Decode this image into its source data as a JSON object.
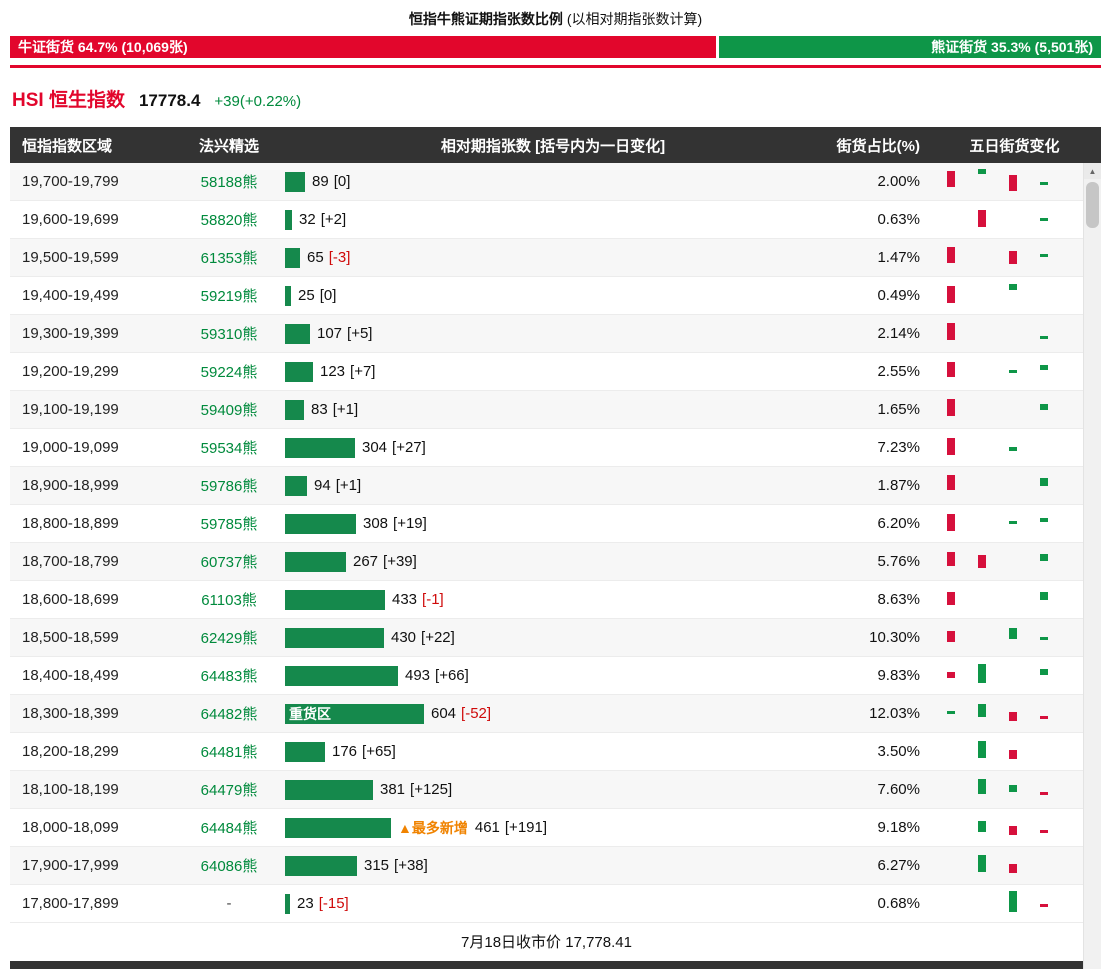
{
  "page": {
    "title_main": "恒指牛熊证期指张数比例",
    "title_sub": "(以相对期指张数计算)"
  },
  "ratio_bar": {
    "bull_label": "牛证街货 64.7% (10,069张)",
    "bull_pct": 64.7,
    "bear_label": "熊证街货 35.3% (5,501张)",
    "bear_pct": 35.3
  },
  "index_header": {
    "title": "HSI 恒生指数",
    "price": "17778.4",
    "change": "+39(+0.22%)"
  },
  "table": {
    "columns": [
      "恒指指数区域",
      "法兴精选",
      "相对期指张数 [括号内为一日变化]",
      "街货占比(%)",
      "五日街货变化"
    ],
    "footer": "7月18日收市价 17,778.41",
    "rows": [
      {
        "range": "19,700-19,799",
        "code": "58188熊",
        "qty": 89,
        "chg": "[0]",
        "neg": false,
        "pct": "2.00%",
        "spark": [
          [
            0,
            "r",
            4,
            16
          ],
          [
            1,
            "g",
            2,
            5
          ],
          [
            2,
            "r",
            8,
            16
          ],
          [
            3,
            "g",
            15,
            3
          ]
        ]
      },
      {
        "range": "19,600-19,699",
        "code": "58820熊",
        "qty": 32,
        "chg": "[+2]",
        "neg": false,
        "pct": "0.63%",
        "spark": [
          [
            1,
            "r",
            5,
            17
          ],
          [
            3,
            "g",
            13,
            3
          ]
        ]
      },
      {
        "range": "19,500-19,599",
        "code": "61353熊",
        "qty": 65,
        "chg": "[-3]",
        "neg": true,
        "pct": "1.47%",
        "spark": [
          [
            0,
            "r",
            4,
            16
          ],
          [
            2,
            "r",
            8,
            13
          ],
          [
            3,
            "g",
            11,
            3
          ]
        ]
      },
      {
        "range": "19,400-19,499",
        "code": "59219熊",
        "qty": 25,
        "chg": "[0]",
        "neg": false,
        "pct": "0.49%",
        "spark": [
          [
            0,
            "r",
            5,
            17
          ],
          [
            2,
            "g",
            3,
            6
          ]
        ]
      },
      {
        "range": "19,300-19,399",
        "code": "59310熊",
        "qty": 107,
        "chg": "[+5]",
        "neg": false,
        "pct": "2.14%",
        "spark": [
          [
            0,
            "r",
            4,
            17
          ],
          [
            3,
            "g",
            17,
            3
          ]
        ]
      },
      {
        "range": "19,200-19,299",
        "code": "59224熊",
        "qty": 123,
        "chg": "[+7]",
        "neg": false,
        "pct": "2.55%",
        "spark": [
          [
            0,
            "r",
            5,
            15
          ],
          [
            2,
            "g",
            13,
            3
          ],
          [
            3,
            "g",
            8,
            5
          ]
        ]
      },
      {
        "range": "19,100-19,199",
        "code": "59409熊",
        "qty": 83,
        "chg": "[+1]",
        "neg": false,
        "pct": "1.65%",
        "spark": [
          [
            0,
            "r",
            4,
            17
          ],
          [
            3,
            "g",
            9,
            6
          ]
        ]
      },
      {
        "range": "19,000-19,099",
        "code": "59534熊",
        "qty": 304,
        "chg": "[+27]",
        "neg": false,
        "pct": "7.23%",
        "spark": [
          [
            0,
            "r",
            5,
            17
          ],
          [
            2,
            "g",
            14,
            4
          ]
        ]
      },
      {
        "range": "18,900-18,999",
        "code": "59786熊",
        "qty": 94,
        "chg": "[+1]",
        "neg": false,
        "pct": "1.87%",
        "spark": [
          [
            0,
            "r",
            4,
            15
          ],
          [
            3,
            "g",
            7,
            8
          ]
        ]
      },
      {
        "range": "18,800-18,899",
        "code": "59785熊",
        "qty": 308,
        "chg": "[+19]",
        "neg": false,
        "pct": "6.20%",
        "spark": [
          [
            0,
            "r",
            5,
            17
          ],
          [
            2,
            "g",
            12,
            3
          ],
          [
            3,
            "g",
            9,
            4
          ]
        ]
      },
      {
        "range": "18,700-18,799",
        "code": "60737熊",
        "qty": 267,
        "chg": "[+39]",
        "neg": false,
        "pct": "5.76%",
        "spark": [
          [
            0,
            "r",
            5,
            14
          ],
          [
            1,
            "r",
            8,
            13
          ],
          [
            3,
            "g",
            7,
            7
          ]
        ]
      },
      {
        "range": "18,600-18,699",
        "code": "61103熊",
        "qty": 433,
        "chg": "[-1]",
        "neg": true,
        "pct": "8.63%",
        "spark": [
          [
            0,
            "r",
            7,
            13
          ],
          [
            3,
            "g",
            7,
            8
          ]
        ]
      },
      {
        "range": "18,500-18,599",
        "code": "62429熊",
        "qty": 430,
        "chg": "[+22]",
        "neg": false,
        "pct": "10.30%",
        "spark": [
          [
            0,
            "r",
            8,
            11
          ],
          [
            2,
            "g",
            5,
            11
          ],
          [
            3,
            "g",
            14,
            3
          ]
        ]
      },
      {
        "range": "18,400-18,499",
        "code": "64483熊",
        "qty": 493,
        "chg": "[+66]",
        "neg": false,
        "pct": "9.83%",
        "spark": [
          [
            0,
            "r",
            11,
            6
          ],
          [
            1,
            "g",
            3,
            19
          ],
          [
            3,
            "g",
            8,
            6
          ]
        ]
      },
      {
        "range": "18,300-18,399",
        "code": "64482熊",
        "qty": 604,
        "chg": "[-52]",
        "neg": true,
        "pct": "12.03%",
        "barLabel": "重货区",
        "spark": [
          [
            0,
            "g",
            12,
            3
          ],
          [
            1,
            "g",
            5,
            13
          ],
          [
            2,
            "r",
            13,
            9
          ],
          [
            3,
            "r",
            17,
            3
          ]
        ]
      },
      {
        "range": "18,200-18,299",
        "code": "64481熊",
        "qty": 176,
        "chg": "[+65]",
        "neg": false,
        "pct": "3.50%",
        "spark": [
          [
            1,
            "g",
            4,
            17
          ],
          [
            2,
            "r",
            13,
            9
          ]
        ]
      },
      {
        "range": "18,100-18,199",
        "code": "64479熊",
        "qty": 381,
        "chg": "[+125]",
        "neg": false,
        "pct": "7.60%",
        "spark": [
          [
            1,
            "g",
            4,
            15
          ],
          [
            2,
            "g",
            10,
            7
          ],
          [
            3,
            "r",
            17,
            3
          ]
        ]
      },
      {
        "range": "18,000-18,099",
        "code": "64484熊",
        "qty": 461,
        "chg": "[+191]",
        "neg": false,
        "pct": "9.18%",
        "tag": "▲最多新增",
        "spark": [
          [
            1,
            "g",
            8,
            11
          ],
          [
            2,
            "r",
            13,
            9
          ],
          [
            3,
            "r",
            17,
            3
          ]
        ]
      },
      {
        "range": "17,900-17,999",
        "code": "64086熊",
        "qty": 315,
        "chg": "[+38]",
        "neg": false,
        "pct": "6.27%",
        "spark": [
          [
            1,
            "g",
            4,
            17
          ],
          [
            2,
            "r",
            13,
            9
          ]
        ]
      },
      {
        "range": "17,800-17,899",
        "code": "-",
        "qty": 23,
        "chg": "[-15]",
        "neg": true,
        "pct": "0.68%",
        "spark": [
          [
            2,
            "g",
            2,
            21
          ],
          [
            3,
            "r",
            15,
            3
          ]
        ]
      }
    ]
  },
  "scrollbar": {
    "up_arrow": "▲"
  },
  "colors": {
    "red": "#e2062c",
    "green": "#0e9648",
    "bar_green": "#15894c",
    "text_green": "#008a3c",
    "neg_red": "#cf0a0a",
    "orange": "#f08300",
    "header_bg": "#333333",
    "spark_red": "#d6103c",
    "spark_green": "#0e9648"
  },
  "chart_data": {
    "type": "bar",
    "title": "恒指牛熊证期指张数比例 (以相对期指张数计算)",
    "orientation": "horizontal",
    "categories": [
      "19,700-19,799",
      "19,600-19,699",
      "19,500-19,599",
      "19,400-19,499",
      "19,300-19,399",
      "19,200-19,299",
      "19,100-19,199",
      "19,000-19,099",
      "18,900-18,999",
      "18,800-18,899",
      "18,700-18,799",
      "18,600-18,699",
      "18,500-18,599",
      "18,400-18,499",
      "18,300-18,399",
      "18,200-18,299",
      "18,100-18,199",
      "18,000-18,099",
      "17,900-17,999",
      "17,800-17,899"
    ],
    "series": [
      {
        "name": "相对期指张数",
        "values": [
          89,
          32,
          65,
          25,
          107,
          123,
          83,
          304,
          94,
          308,
          267,
          433,
          430,
          493,
          604,
          176,
          381,
          461,
          315,
          23
        ]
      },
      {
        "name": "一日变化",
        "values": [
          0,
          2,
          -3,
          0,
          5,
          7,
          1,
          27,
          1,
          19,
          39,
          -1,
          22,
          66,
          -52,
          65,
          125,
          191,
          38,
          -15
        ]
      },
      {
        "name": "街货占比(%)",
        "values": [
          2.0,
          0.63,
          1.47,
          0.49,
          2.14,
          2.55,
          1.65,
          7.23,
          1.87,
          6.2,
          5.76,
          8.63,
          10.3,
          9.83,
          12.03,
          3.5,
          7.6,
          9.18,
          6.27,
          0.68
        ]
      }
    ],
    "annotations": {
      "heavy_zone": {
        "label": "重货区",
        "category": "18,300-18,399"
      },
      "most_new": {
        "label": "▲最多新增",
        "category": "18,000-18,099"
      }
    },
    "summary": {
      "bull": {
        "label": "牛证街货",
        "pct": 64.7,
        "contracts": "10,069张"
      },
      "bear": {
        "label": "熊证街货",
        "pct": 35.3,
        "contracts": "5,501张"
      },
      "index": {
        "name": "HSI 恒生指数",
        "price": 17778.4,
        "change": "+39(+0.22%)"
      },
      "closing_note": "7月18日收市价 17,778.41"
    }
  }
}
